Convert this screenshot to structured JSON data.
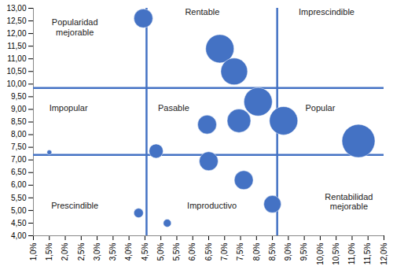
{
  "chart_data": {
    "type": "bubble",
    "color": "#4472c4",
    "x": [
      4.45,
      6.85,
      7.3,
      8.05,
      8.85,
      11.2,
      7.45,
      6.45,
      4.85,
      1.5,
      6.5,
      7.6,
      8.5,
      4.3,
      5.2
    ],
    "values": [
      12.6,
      11.4,
      10.5,
      9.3,
      8.55,
      7.75,
      8.55,
      8.4,
      7.35,
      7.3,
      6.95,
      6.2,
      5.25,
      4.9,
      4.5
    ],
    "sizes": [
      144,
      324,
      289,
      324,
      324,
      441,
      225,
      144,
      81,
      9,
      144,
      144,
      121,
      36,
      25
    ],
    "xlim": [
      1.0,
      12.0
    ],
    "xticks": [
      {
        "value": 1.0,
        "label": "1,0%"
      },
      {
        "value": 1.5,
        "label": "1,5%"
      },
      {
        "value": 2.0,
        "label": "2,0%"
      },
      {
        "value": 2.5,
        "label": "2,5%"
      },
      {
        "value": 3.0,
        "label": "3,0%"
      },
      {
        "value": 3.5,
        "label": "3,5%"
      },
      {
        "value": 4.0,
        "label": "4,0%"
      },
      {
        "value": 4.5,
        "label": "4,5%"
      },
      {
        "value": 5.0,
        "label": "5,0%"
      },
      {
        "value": 5.5,
        "label": "5,5%"
      },
      {
        "value": 6.0,
        "label": "6,0%"
      },
      {
        "value": 6.5,
        "label": "6,5%"
      },
      {
        "value": 7.0,
        "label": "7,0%"
      },
      {
        "value": 7.5,
        "label": "7,5%"
      },
      {
        "value": 8.0,
        "label": "8,0%"
      },
      {
        "value": 8.5,
        "label": "8,5%"
      },
      {
        "value": 9.0,
        "label": "9,0%"
      },
      {
        "value": 9.5,
        "label": "9,5%"
      },
      {
        "value": 10.0,
        "label": "10,0%"
      },
      {
        "value": 10.5,
        "label": "10,5%"
      },
      {
        "value": 11.0,
        "label": "11,0%"
      },
      {
        "value": 11.5,
        "label": "11,5%"
      },
      {
        "value": 12.0,
        "label": "12,0%"
      }
    ],
    "ylim": [
      4.0,
      13.0
    ],
    "yticks": [
      {
        "value": 4.0,
        "label": "4,00"
      },
      {
        "value": 4.5,
        "label": "4,50"
      },
      {
        "value": 5.0,
        "label": "5,00"
      },
      {
        "value": 5.5,
        "label": "5,50"
      },
      {
        "value": 6.0,
        "label": "6,00"
      },
      {
        "value": 6.5,
        "label": "6,50"
      },
      {
        "value": 7.0,
        "label": "7,00"
      },
      {
        "value": 7.5,
        "label": "7,50"
      },
      {
        "value": 8.0,
        "label": "8,00"
      },
      {
        "value": 8.5,
        "label": "8,50"
      },
      {
        "value": 9.0,
        "label": "9,00"
      },
      {
        "value": 9.5,
        "label": "9,50"
      },
      {
        "value": 10.0,
        "label": "10,00"
      },
      {
        "value": 10.5,
        "label": "10,50"
      },
      {
        "value": 11.0,
        "label": "11,00"
      },
      {
        "value": 11.5,
        "label": "11,50"
      },
      {
        "value": 12.0,
        "label": "12,00"
      },
      {
        "value": 12.5,
        "label": "12,50"
      },
      {
        "value": 13.0,
        "label": "13,00"
      }
    ],
    "grid": false,
    "reference_lines": {
      "x": [
        4.55,
        8.65
      ],
      "y": [
        9.85,
        7.2
      ]
    },
    "annotations": [
      {
        "text": "Popularidad\nmejorable",
        "x": 2.3,
        "y": 12.25
      },
      {
        "text": "Rentable",
        "x": 6.3,
        "y": 12.85
      },
      {
        "text": "Imprescindible",
        "x": 10.2,
        "y": 12.85
      },
      {
        "text": "Impopular",
        "x": 2.1,
        "y": 9.05
      },
      {
        "text": "Pasable",
        "x": 5.4,
        "y": 9.05
      },
      {
        "text": "Popular",
        "x": 10.0,
        "y": 9.05
      },
      {
        "text": "Prescindible",
        "x": 2.3,
        "y": 5.2
      },
      {
        "text": "Improductivo",
        "x": 6.6,
        "y": 5.2
      },
      {
        "text": "Rentabilidad\nmejorable",
        "x": 10.9,
        "y": 5.35
      }
    ]
  }
}
